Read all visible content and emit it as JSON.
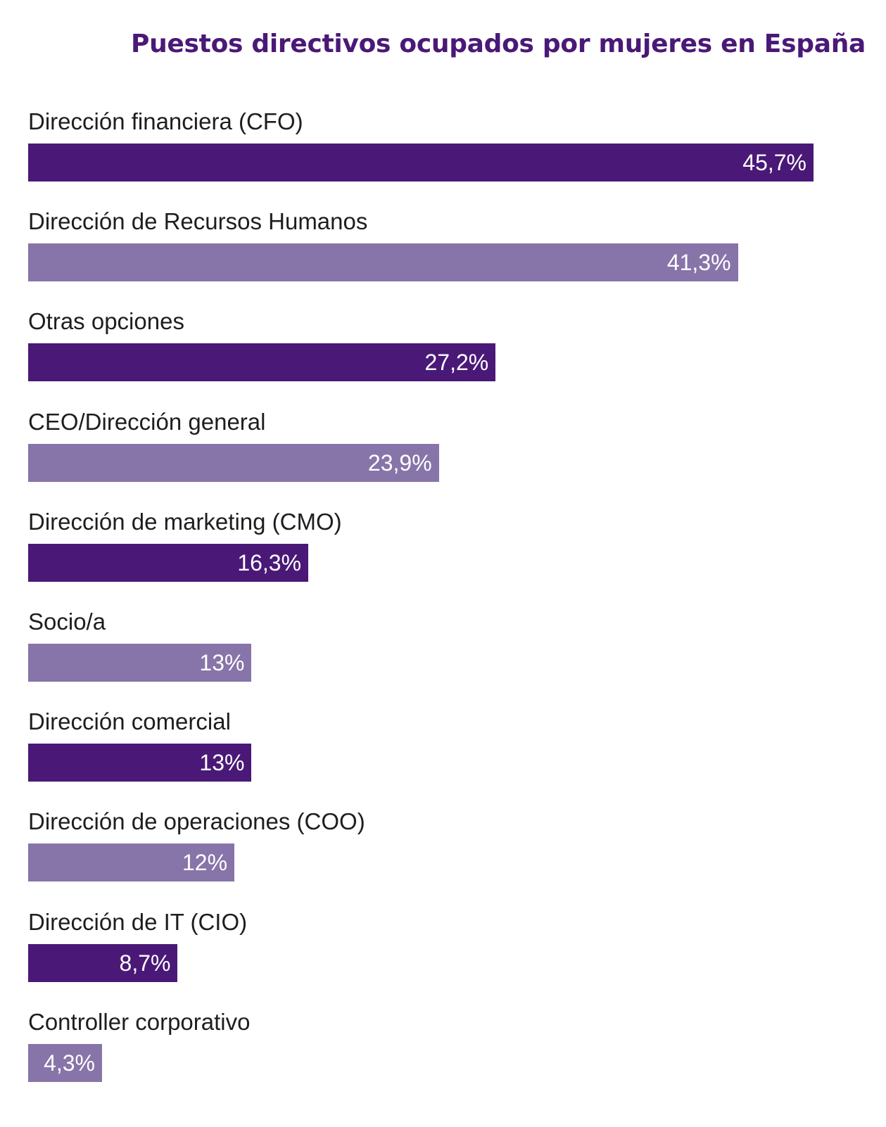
{
  "chart_data": {
    "type": "bar",
    "orientation": "horizontal",
    "title": "Puestos directivos ocupados por mujeres en España",
    "categories": [
      "Dirección financiera (CFO)",
      "Dirección de Recursos Humanos",
      "Otras opciones",
      "CEO/Dirección general",
      "Dirección de marketing (CMO)",
      "Socio/a",
      "Dirección comercial",
      "Dirección de operaciones (COO)",
      "Dirección de IT (CIO)",
      "Controller corporativo"
    ],
    "values": [
      45.7,
      41.3,
      27.2,
      23.9,
      16.3,
      13,
      13,
      12,
      8.7,
      4.3
    ],
    "value_labels": [
      "45,7%",
      "41,3%",
      "27,2%",
      "23,9%",
      "16,3%",
      "13%",
      "13%",
      "12%",
      "8,7%",
      "4,3%"
    ],
    "unit": "%",
    "xlim": [
      0,
      45.7
    ],
    "grid": false,
    "legend": "none",
    "colors": [
      "#4a1977",
      "#8774a9"
    ]
  }
}
